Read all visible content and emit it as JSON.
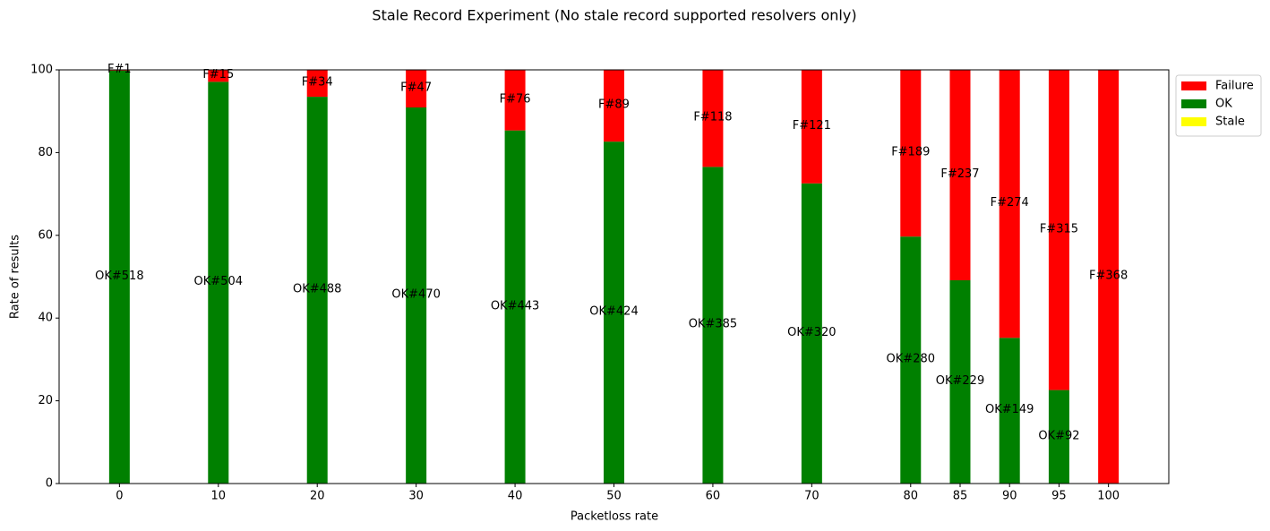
{
  "chart_data": {
    "type": "stacked_bar",
    "title": "Stale Record Experiment (No stale record supported resolvers only)",
    "x_label": "Packetloss rate",
    "y_label": "Rate of results",
    "x": [
      0,
      10,
      20,
      30,
      40,
      50,
      60,
      70,
      80,
      85,
      90,
      95,
      100
    ],
    "series": [
      {
        "name": "Failure",
        "color": "#ff0000",
        "values": [
          0.19,
          2.89,
          6.51,
          9.09,
          14.64,
          17.35,
          23.46,
          27.44,
          40.3,
          50.86,
          64.78,
          77.4,
          100
        ],
        "annotations": [
          "F#1",
          "F#15",
          "F#34",
          "F#47",
          "F#76",
          "F#89",
          "F#118",
          "F#121",
          "F#189",
          "F#237",
          "F#274",
          "F#315",
          "F#368"
        ]
      },
      {
        "name": "OK",
        "color": "#008000",
        "values": [
          99.81,
          97.11,
          93.49,
          90.91,
          85.36,
          82.65,
          76.54,
          72.56,
          59.7,
          49.14,
          35.22,
          22.6,
          0
        ],
        "annotations": [
          "OK#518",
          "OK#504",
          "OK#488",
          "OK#470",
          "OK#443",
          "OK#424",
          "OK#385",
          "OK#320",
          "OK#280",
          "OK#229",
          "OK#149",
          "OK#92",
          null
        ]
      },
      {
        "name": "Stale",
        "color": "#ffff00",
        "values": [
          0,
          0,
          0,
          0,
          0,
          0,
          0,
          0,
          0,
          0,
          0,
          0,
          0
        ]
      }
    ],
    "xlim": [
      -6.1,
      106.1
    ],
    "xticks": [
      0,
      10,
      20,
      30,
      40,
      50,
      60,
      70,
      80,
      85,
      90,
      95,
      100
    ],
    "ylim": [
      0,
      100
    ],
    "yticks": [
      0,
      20,
      40,
      60,
      80,
      100
    ],
    "legend": "upper right outside"
  }
}
